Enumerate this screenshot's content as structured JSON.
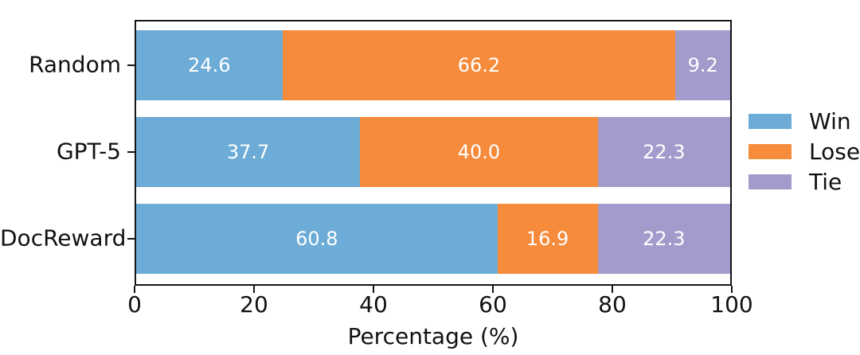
{
  "chart_data": {
    "type": "bar",
    "orientation": "horizontal",
    "stacked": true,
    "title": "",
    "xlabel": "Percentage (%)",
    "ylabel": "",
    "xlim": [
      0,
      100
    ],
    "xticks": [
      0,
      20,
      40,
      60,
      80,
      100
    ],
    "grid": false,
    "legend_position": "right",
    "categories": [
      "Random",
      "GPT-5",
      "DocReward"
    ],
    "series": [
      {
        "name": "Win",
        "color": "#6CACD6",
        "values": [
          24.6,
          37.7,
          60.8
        ],
        "labels": [
          "24.6",
          "37.7",
          "60.8"
        ]
      },
      {
        "name": "Lose",
        "color": "#F78B3C",
        "values": [
          66.2,
          40.0,
          16.9
        ],
        "labels": [
          "66.2",
          "40.0",
          "16.9"
        ]
      },
      {
        "name": "Tie",
        "color": "#A19CCB",
        "values": [
          9.2,
          22.3,
          22.3
        ],
        "labels": [
          "9.2",
          "22.3",
          "22.3"
        ]
      }
    ],
    "value_label_color": "#ffffff",
    "axis_color": "#151515"
  }
}
